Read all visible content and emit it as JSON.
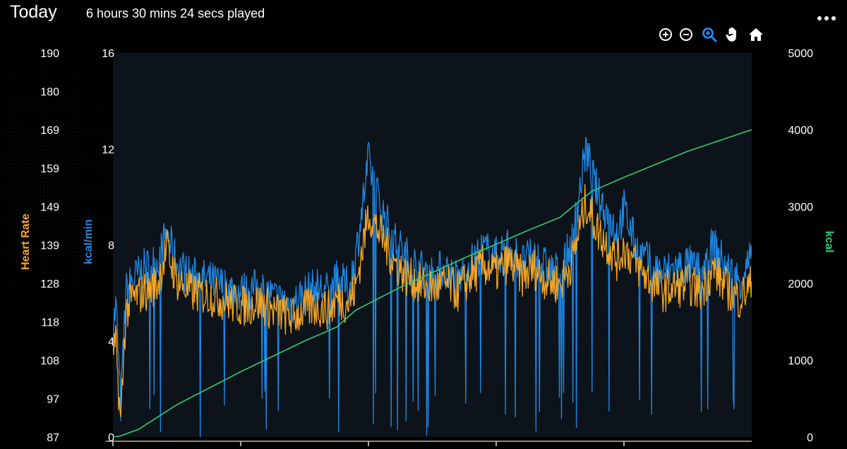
{
  "header": {
    "title": "Today",
    "subtitle": "6 hours 30 mins 24 secs played"
  },
  "toolbar": {
    "icons": [
      "zoom-in-icon",
      "zoom-out-icon",
      "selection-zoom-icon",
      "pan-hand-icon",
      "reset-home-icon"
    ],
    "active_color": "#1e90ff"
  },
  "chart_data": {
    "type": "line",
    "x_range": [
      0,
      1
    ],
    "axes": {
      "heart_rate": {
        "label": "Heart Rate",
        "color": "#f5a623",
        "range": [
          87,
          190
        ],
        "ticks": [
          "190",
          "180",
          "169",
          "159",
          "149",
          "139",
          "128",
          "118",
          "108",
          "97",
          "87"
        ]
      },
      "kcal_min": {
        "label": "kcal/min",
        "color": "#1e88e5",
        "range": [
          0,
          16
        ],
        "ticks": [
          "16",
          "12",
          "8",
          "4",
          "0"
        ]
      },
      "kcal": {
        "label": "kcal",
        "color": "#2ecc71",
        "range": [
          0,
          5000
        ],
        "ticks": [
          "5000",
          "4000",
          "3000",
          "2000",
          "1000",
          "0"
        ]
      }
    },
    "series": [
      {
        "key": "kcal_min",
        "axis": "kcal_min",
        "x": [
          0.0,
          0.005,
          0.012,
          0.02,
          0.03,
          0.05,
          0.07,
          0.085,
          0.09,
          0.1,
          0.12,
          0.15,
          0.17,
          0.2,
          0.23,
          0.25,
          0.28,
          0.3,
          0.32,
          0.34,
          0.35,
          0.37,
          0.38,
          0.4,
          0.42,
          0.44,
          0.46,
          0.48,
          0.5,
          0.52,
          0.54,
          0.56,
          0.58,
          0.6,
          0.62,
          0.64,
          0.66,
          0.68,
          0.7,
          0.71,
          0.72,
          0.74,
          0.76,
          0.78,
          0.79,
          0.8,
          0.82,
          0.84,
          0.86,
          0.88,
          0.9,
          0.92,
          0.94,
          0.96,
          0.98,
          1.0
        ],
        "y": [
          4.5,
          5.5,
          1.2,
          6.0,
          6.5,
          7.0,
          7.3,
          8.5,
          8.0,
          7.2,
          6.7,
          6.5,
          6.3,
          6.0,
          6.2,
          5.8,
          5.5,
          6.0,
          6.2,
          6.0,
          6.5,
          6.2,
          7.5,
          11.5,
          9.5,
          8.2,
          7.5,
          7.0,
          6.8,
          7.0,
          6.5,
          7.2,
          7.8,
          7.5,
          8.0,
          7.2,
          7.5,
          7.0,
          6.8,
          7.5,
          8.2,
          12.0,
          10.0,
          9.0,
          8.5,
          9.5,
          7.8,
          7.2,
          6.8,
          7.0,
          7.2,
          6.8,
          8.0,
          7.0,
          6.5,
          7.5
        ]
      },
      {
        "key": "heart_rate",
        "axis": "heart_rate",
        "x": [
          0.0,
          0.005,
          0.012,
          0.02,
          0.03,
          0.05,
          0.07,
          0.085,
          0.09,
          0.1,
          0.12,
          0.15,
          0.17,
          0.2,
          0.23,
          0.25,
          0.28,
          0.3,
          0.32,
          0.34,
          0.35,
          0.37,
          0.38,
          0.4,
          0.42,
          0.44,
          0.46,
          0.48,
          0.5,
          0.52,
          0.54,
          0.56,
          0.58,
          0.6,
          0.62,
          0.64,
          0.66,
          0.68,
          0.7,
          0.71,
          0.72,
          0.74,
          0.76,
          0.78,
          0.79,
          0.8,
          0.82,
          0.84,
          0.86,
          0.88,
          0.9,
          0.92,
          0.94,
          0.96,
          0.98,
          1.0
        ],
        "y": [
          108,
          112,
          90,
          120,
          124,
          126,
          128,
          138,
          134,
          129,
          126,
          125,
          124,
          122,
          123,
          121,
          119,
          121,
          122,
          121,
          124,
          123,
          127,
          147,
          141,
          134,
          130,
          128,
          127,
          128,
          126,
          130,
          133,
          131,
          134,
          130,
          132,
          129,
          128,
          131,
          135,
          150,
          142,
          137,
          134,
          138,
          133,
          129,
          126,
          127,
          128,
          126,
          132,
          127,
          124,
          128
        ]
      },
      {
        "key": "kcal",
        "axis": "kcal",
        "x": [
          0.0,
          0.01,
          0.02,
          0.04,
          0.1,
          0.2,
          0.3,
          0.35,
          0.38,
          0.45,
          0.55,
          0.65,
          0.7,
          0.72,
          0.75,
          0.8,
          0.9,
          1.0
        ],
        "y": [
          0,
          10,
          40,
          100,
          420,
          850,
          1250,
          1430,
          1650,
          1950,
          2330,
          2690,
          2860,
          3000,
          3200,
          3380,
          3720,
          4000
        ]
      }
    ]
  }
}
